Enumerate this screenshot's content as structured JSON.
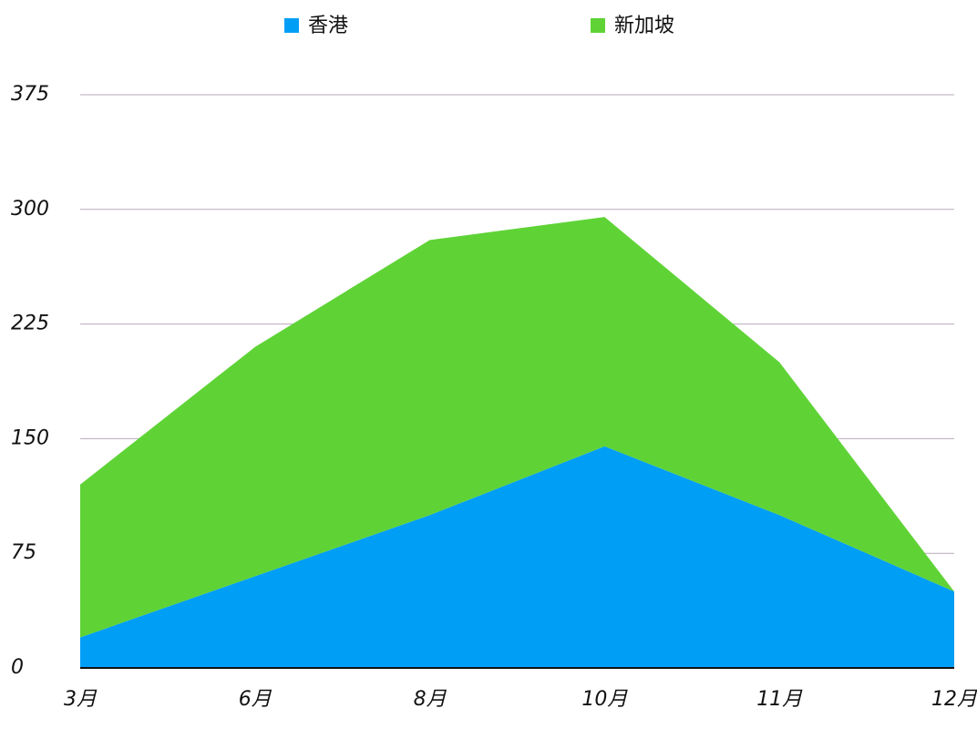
{
  "chart_data": {
    "type": "stacked-area",
    "categories": [
      "3月",
      "6月",
      "8月",
      "10月",
      "11月",
      "12月"
    ],
    "series": [
      {
        "name": "香港",
        "color": "#009ef5",
        "values": [
          20,
          60,
          100,
          145,
          100,
          50
        ]
      },
      {
        "name": "新加坡",
        "color": "#5fd336",
        "values": [
          100,
          150,
          180,
          150,
          100,
          0
        ]
      }
    ],
    "ylim": [
      0,
      375
    ],
    "yticks": [
      0,
      75,
      150,
      225,
      300,
      375
    ],
    "grid": true,
    "legend": "top"
  }
}
